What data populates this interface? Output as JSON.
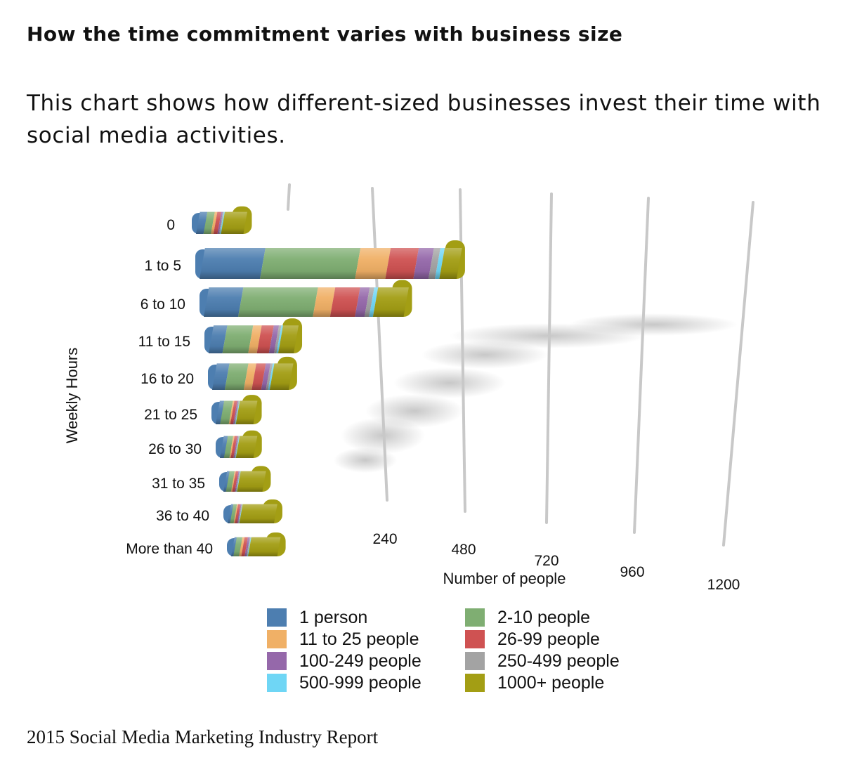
{
  "title": "How the time commitment varies with business size",
  "subtitle": "This chart shows how different-sized businesses invest their time with social media activities.",
  "footer": "2015 Social Media Marketing Industry Report",
  "chart_data": {
    "type": "bar",
    "orientation": "horizontal",
    "stacked": true,
    "style": "3d",
    "xlabel": "Number of people",
    "ylabel": "Weekly Hours",
    "xticks": [
      "240",
      "480",
      "720",
      "960",
      "1200"
    ],
    "xlim": [
      0,
      1200
    ],
    "grid": true,
    "legend_position": "bottom",
    "categories": [
      "0",
      "1 to 5",
      "6 to 10",
      "11 to 15",
      "16 to 20",
      "21 to 25",
      "26 to 30",
      "31 to 35",
      "36 to 40",
      "More than 40"
    ],
    "series": [
      {
        "name": "1 person",
        "color": "#4d7eb0",
        "values": [
          15,
          140,
          90,
          40,
          40,
          15,
          15,
          10,
          10,
          10
        ]
      },
      {
        "name": "2-10 people",
        "color": "#7fae72",
        "values": [
          15,
          220,
          195,
          75,
          60,
          30,
          20,
          20,
          15,
          25
        ]
      },
      {
        "name": "11 to 25 people",
        "color": "#f0b066",
        "values": [
          5,
          70,
          45,
          25,
          25,
          5,
          5,
          5,
          5,
          10
        ]
      },
      {
        "name": "26-99 people",
        "color": "#cf5252",
        "values": [
          8,
          65,
          65,
          35,
          30,
          10,
          10,
          10,
          10,
          15
        ]
      },
      {
        "name": "100-249 people",
        "color": "#9568aa",
        "values": [
          3,
          35,
          25,
          15,
          15,
          4,
          4,
          4,
          4,
          8
        ]
      },
      {
        "name": "250-499 people",
        "color": "#a3a3a3",
        "values": [
          2,
          15,
          12,
          7,
          7,
          3,
          3,
          3,
          3,
          4
        ]
      },
      {
        "name": "500-999 people",
        "color": "#6fd6f5",
        "values": [
          2,
          10,
          10,
          5,
          5,
          2,
          2,
          2,
          2,
          3
        ]
      },
      {
        "name": "1000+ people",
        "color": "#a39e14",
        "values": [
          45,
          40,
          80,
          45,
          60,
          60,
          65,
          100,
          145,
          130
        ]
      }
    ]
  }
}
